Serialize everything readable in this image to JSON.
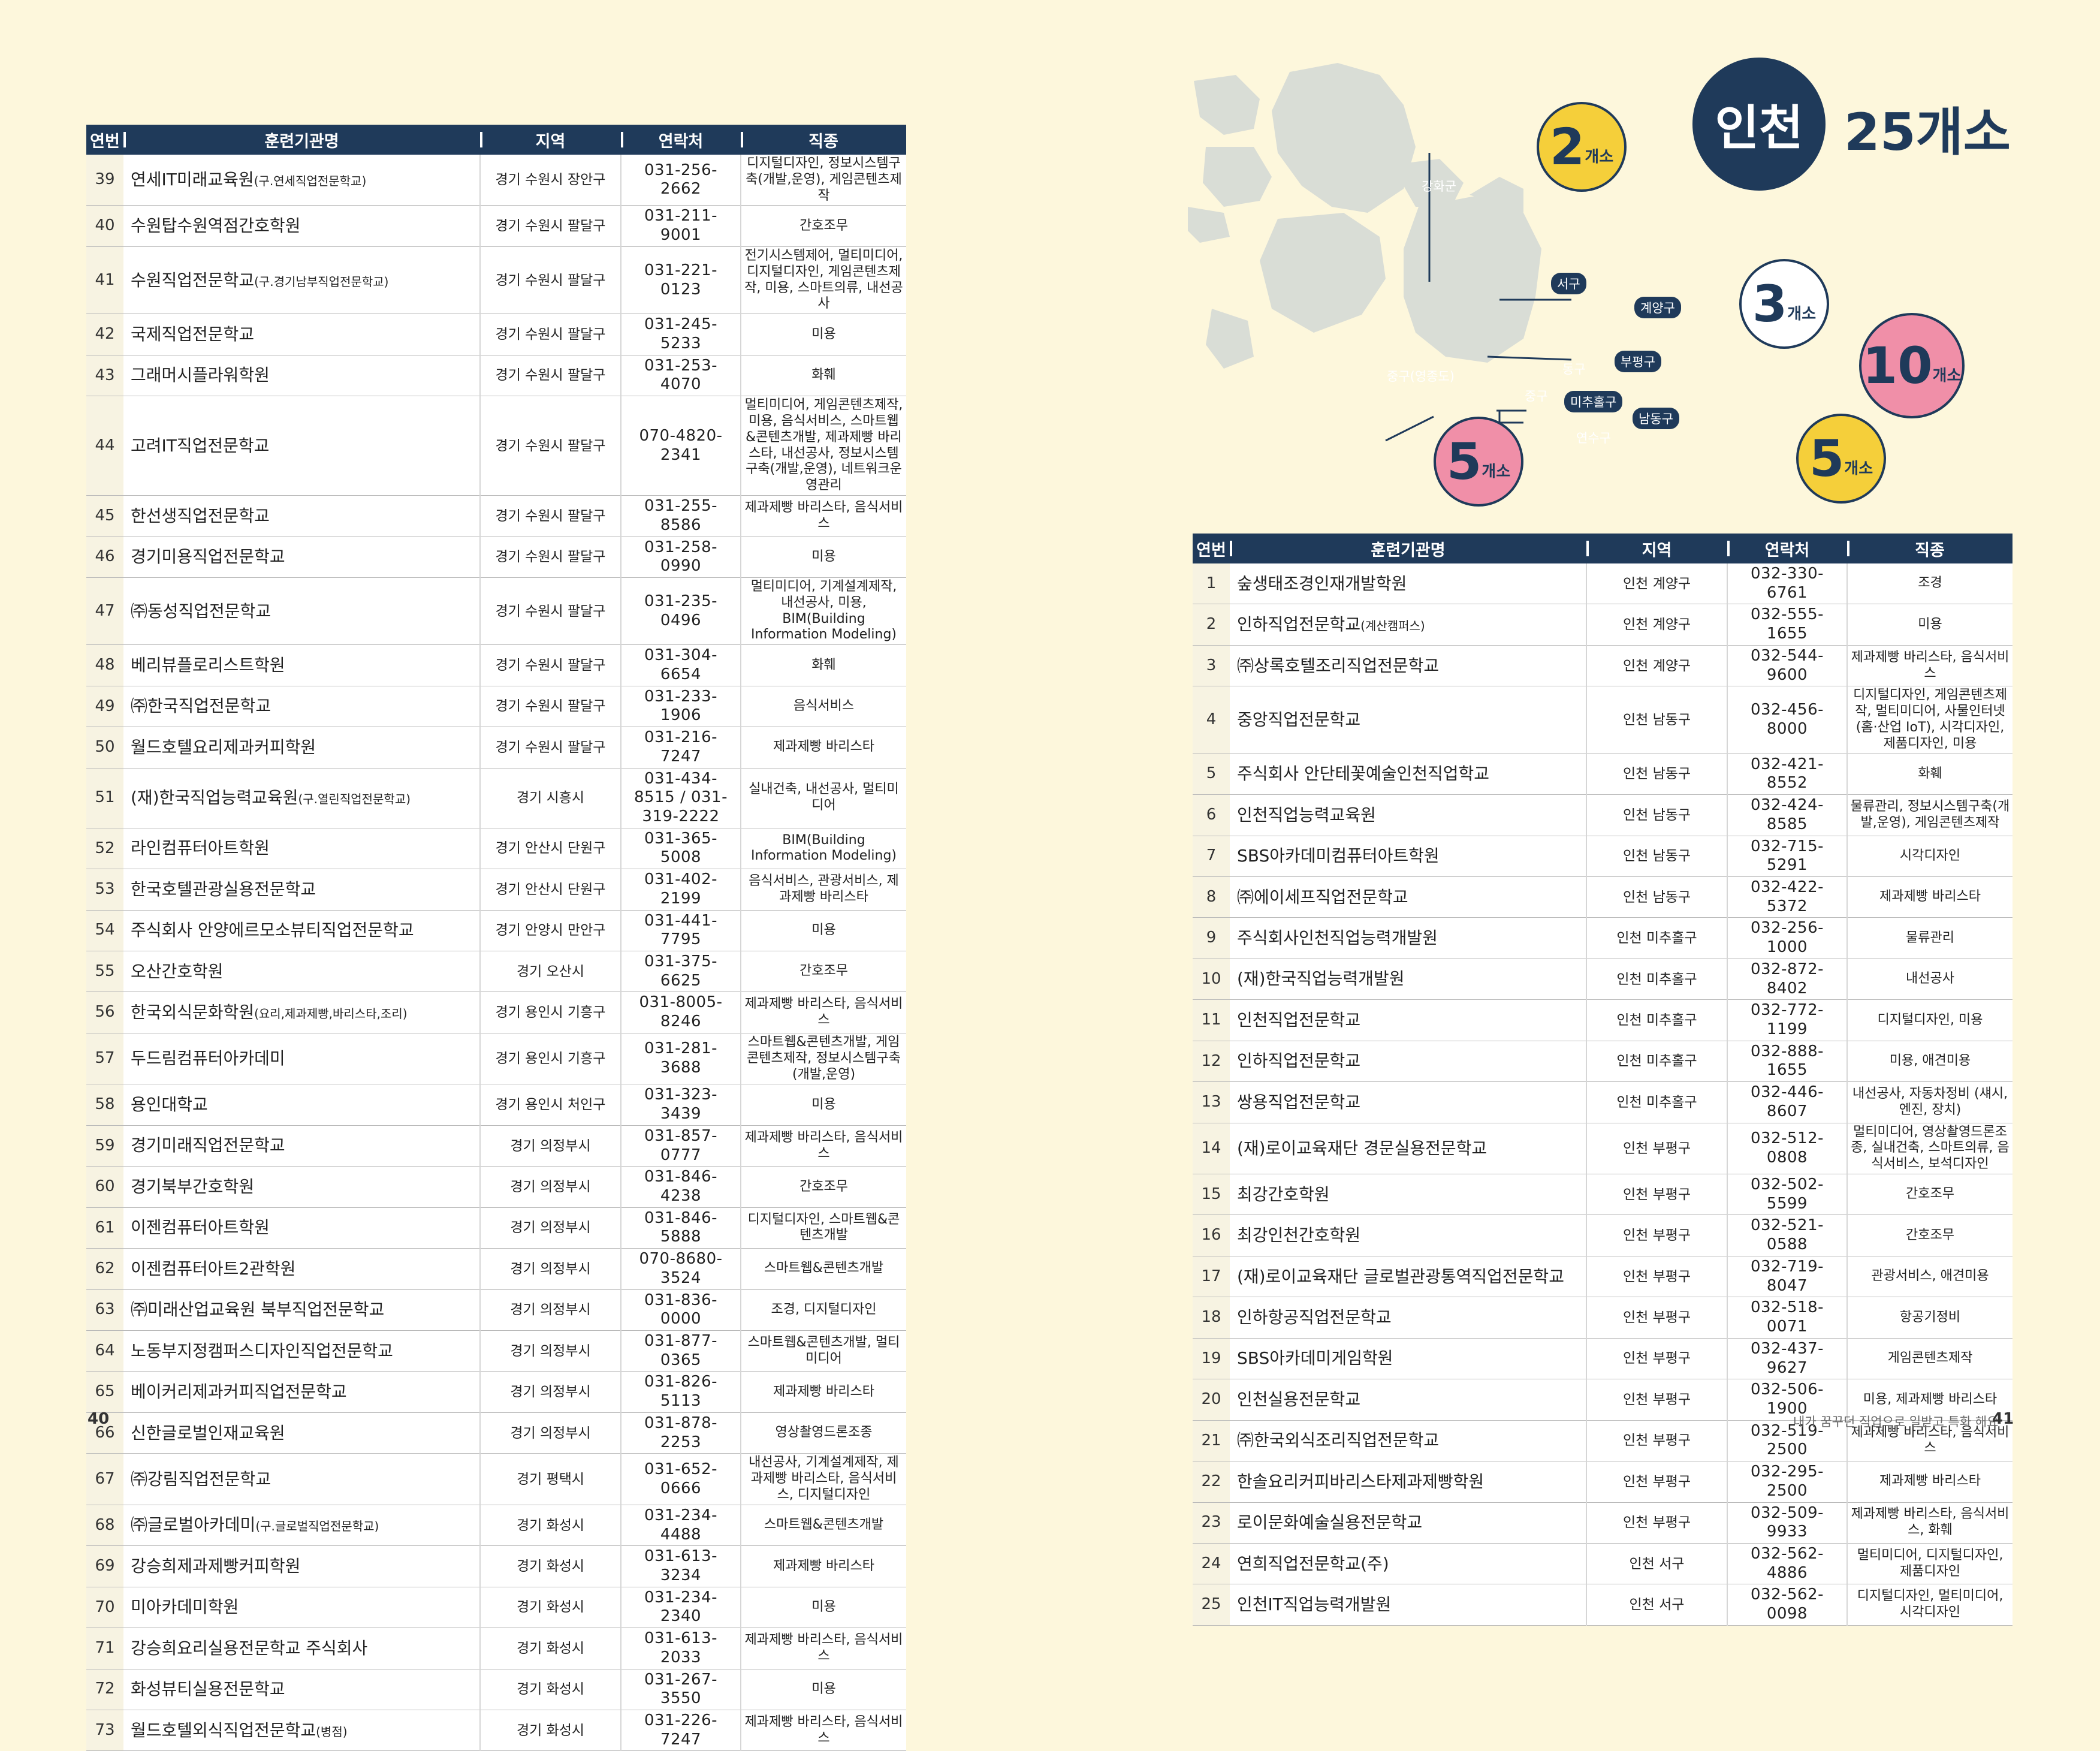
{
  "headers": {
    "no": "연번",
    "name": "훈련기관명",
    "region": "지역",
    "phone": "연락처",
    "job": "직종"
  },
  "left_rows": [
    {
      "no": "39",
      "name": "연세IT미래교육원",
      "sub": "(구.연세직업전문학교)",
      "region": "경기 수원시 장안구",
      "phone": "031-256-2662",
      "job": "디지털디자인, 정보시스템구축(개발,운영), 게임콘텐츠제작"
    },
    {
      "no": "40",
      "name": "수원탑수원역점간호학원",
      "sub": "",
      "region": "경기 수원시 팔달구",
      "phone": "031-211-9001",
      "job": "간호조무"
    },
    {
      "no": "41",
      "name": "수원직업전문학교",
      "sub": "(구.경기남부직업전문학교)",
      "region": "경기 수원시 팔달구",
      "phone": "031-221-0123",
      "job": "전기시스템제어, 멀티미디어, 디지털디자인, 게임콘텐츠제작, 미용, 스마트의류, 내선공사"
    },
    {
      "no": "42",
      "name": "국제직업전문학교",
      "sub": "",
      "region": "경기 수원시 팔달구",
      "phone": "031-245-5233",
      "job": "미용"
    },
    {
      "no": "43",
      "name": "그래머시플라워학원",
      "sub": "",
      "region": "경기 수원시 팔달구",
      "phone": "031-253-4070",
      "job": "화훼"
    },
    {
      "no": "44",
      "name": "고려IT직업전문학교",
      "sub": "",
      "region": "경기 수원시 팔달구",
      "phone": "070-4820-2341",
      "job": "멀티미디어, 게임콘텐츠제작, 미용, 음식서비스, 스마트웹&콘텐츠개발, 제과제빵 바리스타, 내선공사, 정보시스템구축(개발,운영), 네트워크운영관리"
    },
    {
      "no": "45",
      "name": "한선생직업전문학교",
      "sub": "",
      "region": "경기 수원시 팔달구",
      "phone": "031-255-8586",
      "job": "제과제빵 바리스타, 음식서비스"
    },
    {
      "no": "46",
      "name": "경기미용직업전문학교",
      "sub": "",
      "region": "경기 수원시 팔달구",
      "phone": "031-258-0990",
      "job": "미용"
    },
    {
      "no": "47",
      "name": "㈜동성직업전문학교",
      "sub": "",
      "region": "경기 수원시 팔달구",
      "phone": "031-235-0496",
      "job": "멀티미디어, 기계설계제작, 내선공사, 미용, BIM(Building Information Modeling)"
    },
    {
      "no": "48",
      "name": "베리뷰플로리스트학원",
      "sub": "",
      "region": "경기 수원시 팔달구",
      "phone": "031-304-6654",
      "job": "화훼"
    },
    {
      "no": "49",
      "name": "㈜한국직업전문학교",
      "sub": "",
      "region": "경기 수원시 팔달구",
      "phone": "031-233-1906",
      "job": "음식서비스"
    },
    {
      "no": "50",
      "name": "월드호텔요리제과커피학원",
      "sub": "",
      "region": "경기 수원시 팔달구",
      "phone": "031-216-7247",
      "job": "제과제빵 바리스타"
    },
    {
      "no": "51",
      "name": "(재)한국직업능력교육원",
      "sub": "(구.열린직업전문학교)",
      "region": "경기 시흥시",
      "phone": "031-434-8515 / 031-319-2222",
      "job": "실내건축, 내선공사, 멀티미디어"
    },
    {
      "no": "52",
      "name": "라인컴퓨터아트학원",
      "sub": "",
      "region": "경기 안산시 단원구",
      "phone": "031-365-5008",
      "job": "BIM(Building Information Modeling)"
    },
    {
      "no": "53",
      "name": "한국호텔관광실용전문학교",
      "sub": "",
      "region": "경기 안산시 단원구",
      "phone": "031-402-2199",
      "job": "음식서비스, 관광서비스, 제과제빵 바리스타"
    },
    {
      "no": "54",
      "name": "주식회사 안양에르모소뷰티직업전문학교",
      "sub": "",
      "region": "경기 안양시 만안구",
      "phone": "031-441-7795",
      "job": "미용"
    },
    {
      "no": "55",
      "name": "오산간호학원",
      "sub": "",
      "region": "경기 오산시",
      "phone": "031-375-6625",
      "job": "간호조무"
    },
    {
      "no": "56",
      "name": "한국외식문화학원",
      "sub": "(요리,제과제빵,바리스타,조리)",
      "region": "경기 용인시 기흥구",
      "phone": "031-8005-8246",
      "job": "제과제빵 바리스타, 음식서비스"
    },
    {
      "no": "57",
      "name": "두드림컴퓨터아카데미",
      "sub": "",
      "region": "경기 용인시 기흥구",
      "phone": "031-281-3688",
      "job": "스마트웹&콘텐츠개발, 게임콘텐츠제작, 정보시스템구축(개발,운영)"
    },
    {
      "no": "58",
      "name": "용인대학교",
      "sub": "",
      "region": "경기 용인시 처인구",
      "phone": "031-323-3439",
      "job": "미용"
    },
    {
      "no": "59",
      "name": "경기미래직업전문학교",
      "sub": "",
      "region": "경기 의정부시",
      "phone": "031-857-0777",
      "job": "제과제빵 바리스타, 음식서비스"
    },
    {
      "no": "60",
      "name": "경기북부간호학원",
      "sub": "",
      "region": "경기 의정부시",
      "phone": "031-846-4238",
      "job": "간호조무"
    },
    {
      "no": "61",
      "name": "이젠컴퓨터아트학원",
      "sub": "",
      "region": "경기 의정부시",
      "phone": "031-846-5888",
      "job": "디지털디자인, 스마트웹&콘텐츠개발"
    },
    {
      "no": "62",
      "name": "이젠컴퓨터아트2관학원",
      "sub": "",
      "region": "경기 의정부시",
      "phone": "070-8680-3524",
      "job": "스마트웹&콘텐츠개발"
    },
    {
      "no": "63",
      "name": "㈜미래산업교육원 북부직업전문학교",
      "sub": "",
      "region": "경기 의정부시",
      "phone": "031-836-0000",
      "job": "조경, 디지털디자인"
    },
    {
      "no": "64",
      "name": "노동부지정캠퍼스디자인직업전문학교",
      "sub": "",
      "region": "경기 의정부시",
      "phone": "031-877-0365",
      "job": "스마트웹&콘텐츠개발, 멀티미디어"
    },
    {
      "no": "65",
      "name": "베이커리제과커피직업전문학교",
      "sub": "",
      "region": "경기 의정부시",
      "phone": "031-826-5113",
      "job": "제과제빵 바리스타"
    },
    {
      "no": "66",
      "name": "신한글로벌인재교육원",
      "sub": "",
      "region": "경기 의정부시",
      "phone": "031-878-2253",
      "job": "영상촬영드론조종"
    },
    {
      "no": "67",
      "name": "㈜강림직업전문학교",
      "sub": "",
      "region": "경기 평택시",
      "phone": "031-652-0666",
      "job": "내선공사, 기계설계제작, 제과제빵 바리스타, 음식서비스, 디지털디자인"
    },
    {
      "no": "68",
      "name": "㈜글로벌아카데미",
      "sub": "(구.글로벌직업전문학교)",
      "region": "경기 화성시",
      "phone": "031-234-4488",
      "job": "스마트웹&콘텐츠개발"
    },
    {
      "no": "69",
      "name": "강승희제과제빵커피학원",
      "sub": "",
      "region": "경기 화성시",
      "phone": "031-613-3234",
      "job": "제과제빵 바리스타"
    },
    {
      "no": "70",
      "name": "미아카데미학원",
      "sub": "",
      "region": "경기 화성시",
      "phone": "031-234-2340",
      "job": "미용"
    },
    {
      "no": "71",
      "name": "강승희요리실용전문학교 주식회사",
      "sub": "",
      "region": "경기 화성시",
      "phone": "031-613-2033",
      "job": "제과제빵 바리스타, 음식서비스"
    },
    {
      "no": "72",
      "name": "화성뷰티실용전문학교",
      "sub": "",
      "region": "경기 화성시",
      "phone": "031-267-3550",
      "job": "미용"
    },
    {
      "no": "73",
      "name": "월드호텔외식직업전문학교",
      "sub": "(병점)",
      "region": "경기 화성시",
      "phone": "031-226-7247",
      "job": "제과제빵 바리스타, 음식서비스"
    }
  ],
  "right_rows": [
    {
      "no": "1",
      "name": "숲생태조경인재개발학원",
      "sub": "",
      "region": "인천 계양구",
      "phone": "032-330-6761",
      "job": "조경"
    },
    {
      "no": "2",
      "name": "인하직업전문학교",
      "sub": "(계산캠퍼스)",
      "region": "인천 계양구",
      "phone": "032-555-1655",
      "job": "미용"
    },
    {
      "no": "3",
      "name": "㈜상록호텔조리직업전문학교",
      "sub": "",
      "region": "인천 계양구",
      "phone": "032-544-9600",
      "job": "제과제빵 바리스타, 음식서비스"
    },
    {
      "no": "4",
      "name": "중앙직업전문학교",
      "sub": "",
      "region": "인천 남동구",
      "phone": "032-456-8000",
      "job": "디지털디자인, 게임콘텐츠제작, 멀티미디어, 사물인터넷(홈·산업 IoT), 시각디자인, 제품디자인, 미용"
    },
    {
      "no": "5",
      "name": "주식회사 안단테꽃예술인천직업학교",
      "sub": "",
      "region": "인천 남동구",
      "phone": "032-421-8552",
      "job": "화훼"
    },
    {
      "no": "6",
      "name": "인천직업능력교육원",
      "sub": "",
      "region": "인천 남동구",
      "phone": "032-424-8585",
      "job": "물류관리, 정보시스템구축(개발,운영), 게임콘텐츠제작"
    },
    {
      "no": "7",
      "name": "SBS아카데미컴퓨터아트학원",
      "sub": "",
      "region": "인천 남동구",
      "phone": "032-715-5291",
      "job": "시각디자인"
    },
    {
      "no": "8",
      "name": "㈜에이세프직업전문학교",
      "sub": "",
      "region": "인천 남동구",
      "phone": "032-422-5372",
      "job": "제과제빵 바리스타"
    },
    {
      "no": "9",
      "name": "주식회사인천직업능력개발원",
      "sub": "",
      "region": "인천 미추홀구",
      "phone": "032-256-1000",
      "job": "물류관리"
    },
    {
      "no": "10",
      "name": "(재)한국직업능력개발원",
      "sub": "",
      "region": "인천 미추홀구",
      "phone": "032-872-8402",
      "job": "내선공사"
    },
    {
      "no": "11",
      "name": "인천직업전문학교",
      "sub": "",
      "region": "인천 미추홀구",
      "phone": "032-772-1199",
      "job": "디지털디자인, 미용"
    },
    {
      "no": "12",
      "name": "인하직업전문학교",
      "sub": "",
      "region": "인천 미추홀구",
      "phone": "032-888-1655",
      "job": "미용, 애견미용"
    },
    {
      "no": "13",
      "name": "쌍용직업전문학교",
      "sub": "",
      "region": "인천 미추홀구",
      "phone": "032-446-8607",
      "job": "내선공사, 자동차정비 (섀시, 엔진, 장치)"
    },
    {
      "no": "14",
      "name": "(재)로이교육재단 경문실용전문학교",
      "sub": "",
      "region": "인천 부평구",
      "phone": "032-512-0808",
      "job": "멀티미디어, 영상촬영드론조종, 실내건축, 스마트의류, 음식서비스, 보석디자인"
    },
    {
      "no": "15",
      "name": "최강간호학원",
      "sub": "",
      "region": "인천 부평구",
      "phone": "032-502-5599",
      "job": "간호조무"
    },
    {
      "no": "16",
      "name": "최강인천간호학원",
      "sub": "",
      "region": "인천 부평구",
      "phone": "032-521-0588",
      "job": "간호조무"
    },
    {
      "no": "17",
      "name": "(재)로이교육재단 글로벌관광통역직업전문학교",
      "sub": "",
      "region": "인천 부평구",
      "phone": "032-719-8047",
      "job": "관광서비스, 애견미용"
    },
    {
      "no": "18",
      "name": "인하항공직업전문학교",
      "sub": "",
      "region": "인천 부평구",
      "phone": "032-518-0071",
      "job": "항공기정비"
    },
    {
      "no": "19",
      "name": "SBS아카데미게임학원",
      "sub": "",
      "region": "인천 부평구",
      "phone": "032-437-9627",
      "job": "게임콘텐츠제작"
    },
    {
      "no": "20",
      "name": "인천실용전문학교",
      "sub": "",
      "region": "인천 부평구",
      "phone": "032-506-1900",
      "job": "미용, 제과제빵 바리스타"
    },
    {
      "no": "21",
      "name": "㈜한국외식조리직업전문학교",
      "sub": "",
      "region": "인천 부평구",
      "phone": "032-519-2500",
      "job": "제과제빵 바리스타, 음식서비스"
    },
    {
      "no": "22",
      "name": "한솔요리커피바리스타제과제빵학원",
      "sub": "",
      "region": "인천 부평구",
      "phone": "032-295-2500",
      "job": "제과제빵 바리스타"
    },
    {
      "no": "23",
      "name": "로이문화예술실용전문학교",
      "sub": "",
      "region": "인천 부평구",
      "phone": "032-509-9933",
      "job": "제과제빵 바리스타, 음식서비스, 화훼"
    },
    {
      "no": "24",
      "name": "연희직업전문학교(주)",
      "sub": "",
      "region": "인천 서구",
      "phone": "032-562-4886",
      "job": "멀티미디어, 디지털디자인, 제품디자인"
    },
    {
      "no": "25",
      "name": "인천IT직업능력개발원",
      "sub": "",
      "region": "인천 서구",
      "phone": "032-562-0098",
      "job": "디지털디자인, 멀티미디어, 시각디자인"
    }
  ],
  "page": {
    "left_number": "40",
    "right_number": "41",
    "footer": "내가 꿈꾸던 직업으로 일받고 특화 해요"
  },
  "title": {
    "city": "인천",
    "count": "25개소"
  },
  "map": {
    "districts": {
      "seo": "서구",
      "gyeyang": "계양구",
      "bupyeong": "부평구",
      "michuhol": "미추홀구",
      "namdong": "남동구"
    },
    "ghost": {
      "ganghwa": "강화군",
      "junggu_yeong": "중구(영종도)",
      "donggu": "동구",
      "junggu": "중구",
      "yeonsu": "연수구"
    },
    "bubbles": {
      "b1": {
        "num": "2",
        "unit": "개소",
        "color": "#f5cf3a"
      },
      "b2": {
        "num": "3",
        "unit": "개소",
        "color": "#ffffff"
      },
      "b3": {
        "num": "10",
        "unit": "개소",
        "color": "#f08fa8"
      },
      "b4": {
        "num": "5",
        "unit": "개소",
        "color": "#f5cf3a"
      },
      "b5": {
        "num": "5",
        "unit": "개소",
        "color": "#f08fa8"
      }
    }
  },
  "colors": {
    "navy": "#1f3a5a",
    "land": "#d9ddd6",
    "yellow": "#f5cf3a",
    "pink": "#f08fa8"
  }
}
